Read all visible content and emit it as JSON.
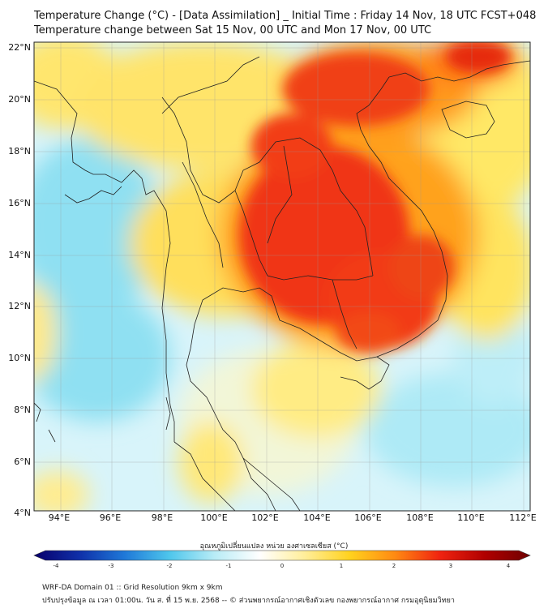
{
  "title_line1": "Temperature Change (°C) - [Data Assimilation] _ Initial Time : Friday 14 Nov, 18 UTC FCST+048",
  "title_line2": "Temperature change between Sat 15 Nov, 00 UTC and Mon 17 Nov, 00 UTC",
  "lat_labels": [
    "22°N",
    "20°N",
    "18°N",
    "16°N",
    "14°N",
    "12°N",
    "10°N",
    "8°N",
    "6°N",
    "4°N"
  ],
  "lon_labels": [
    "94°E",
    "96°E",
    "98°E",
    "100°E",
    "102°E",
    "104°E",
    "106°E",
    "108°E",
    "110°E",
    "112°E"
  ],
  "colorbar": {
    "title": "อุณหภูมิเปลี่ยนแปลง หน่วย องศาเซลเซียส (°C)",
    "ticks": [
      "-4",
      "-3",
      "-2",
      "-1",
      "0",
      "1",
      "2",
      "3",
      "4"
    ],
    "min": -4,
    "max": 4,
    "colors": [
      "#08006b",
      "#0f2fa8",
      "#1f78d8",
      "#4ec6ec",
      "#b8ecf6",
      "#ffffff",
      "#ffee9a",
      "#ffd21e",
      "#ff8a12",
      "#f02310",
      "#b00000",
      "#6e0000"
    ]
  },
  "footer_line1": "WRF-DA Domain 01 :: Grid Resolution 9km x 9km",
  "footer_line2": "ปรับปรุงข้อมูล ณ เวลา 01:00น. วัน ส. ที่ 15 พ.ย. 2568 -- © ส่วนพยากรณ์อากาศเชิงตัวเลข กองพยากรณ์อากาศ กรมอุตุนิยมวิทยา"
}
